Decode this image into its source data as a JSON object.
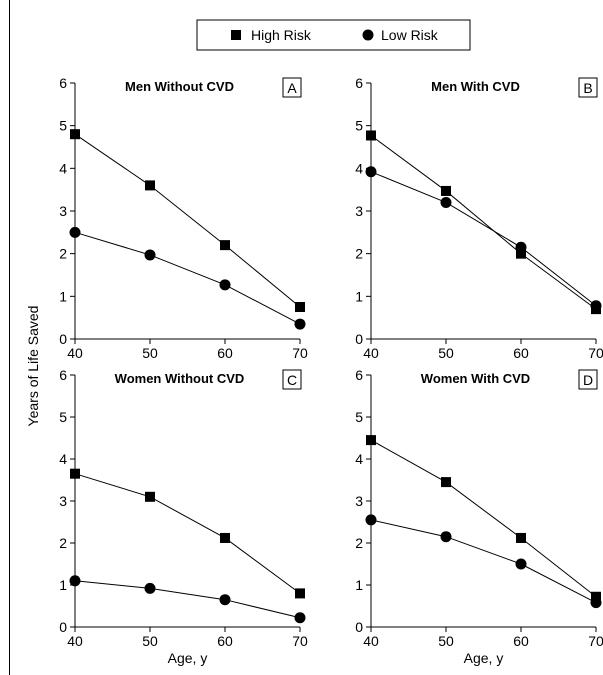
{
  "legend": {
    "items": [
      {
        "label": "High Risk",
        "marker": "square"
      },
      {
        "label": "Low Risk",
        "marker": "circle"
      }
    ]
  },
  "shared_ylabel": "Years of Life Saved",
  "colors": {
    "series": "#000000",
    "axis": "#000000",
    "background": "#ffffff"
  },
  "chart_data": [
    {
      "type": "line",
      "title": "Men Without CVD",
      "panel_letter": "A",
      "xlabel": "",
      "x": [
        40,
        50,
        60,
        70
      ],
      "xlim": [
        40,
        70
      ],
      "xticks": [
        "40",
        "50",
        "60",
        "70"
      ],
      "ylim": [
        0,
        6
      ],
      "yticks": [
        "0",
        "1",
        "2",
        "3",
        "4",
        "5",
        "6"
      ],
      "grid": false,
      "series": [
        {
          "name": "High Risk",
          "marker": "square",
          "values": [
            4.8,
            3.6,
            2.2,
            0.75
          ]
        },
        {
          "name": "Low Risk",
          "marker": "circle",
          "values": [
            2.5,
            1.97,
            1.27,
            0.35
          ]
        }
      ]
    },
    {
      "type": "line",
      "title": "Men With CVD",
      "panel_letter": "B",
      "xlabel": "",
      "x": [
        40,
        50,
        60,
        70
      ],
      "xlim": [
        40,
        70
      ],
      "xticks": [
        "40",
        "50",
        "60",
        "70"
      ],
      "ylim": [
        0,
        6
      ],
      "yticks": [
        "0",
        "1",
        "2",
        "3",
        "4",
        "5",
        "6"
      ],
      "grid": false,
      "series": [
        {
          "name": "High Risk",
          "marker": "square",
          "values": [
            4.77,
            3.47,
            2.0,
            0.7
          ]
        },
        {
          "name": "Low Risk",
          "marker": "circle",
          "values": [
            3.92,
            3.2,
            2.15,
            0.78
          ]
        }
      ]
    },
    {
      "type": "line",
      "title": "Women Without CVD",
      "panel_letter": "C",
      "xlabel": "Age, y",
      "x": [
        40,
        50,
        60,
        70
      ],
      "xlim": [
        40,
        70
      ],
      "xticks": [
        "40",
        "50",
        "60",
        "70"
      ],
      "ylim": [
        0,
        6
      ],
      "yticks": [
        "0",
        "1",
        "2",
        "3",
        "4",
        "5",
        "6"
      ],
      "grid": false,
      "series": [
        {
          "name": "High Risk",
          "marker": "square",
          "values": [
            3.65,
            3.1,
            2.12,
            0.8
          ]
        },
        {
          "name": "Low Risk",
          "marker": "circle",
          "values": [
            1.1,
            0.92,
            0.65,
            0.22
          ]
        }
      ]
    },
    {
      "type": "line",
      "title": "Women With CVD",
      "panel_letter": "D",
      "xlabel": "Age, y",
      "x": [
        40,
        50,
        60,
        70
      ],
      "xlim": [
        40,
        70
      ],
      "xticks": [
        "40",
        "50",
        "60",
        "70"
      ],
      "ylim": [
        0,
        6
      ],
      "yticks": [
        "0",
        "1",
        "2",
        "3",
        "4",
        "5",
        "6"
      ],
      "grid": false,
      "series": [
        {
          "name": "High Risk",
          "marker": "square",
          "values": [
            4.45,
            3.45,
            2.12,
            0.72
          ]
        },
        {
          "name": "Low Risk",
          "marker": "circle",
          "values": [
            2.55,
            2.15,
            1.5,
            0.58
          ]
        }
      ]
    }
  ]
}
